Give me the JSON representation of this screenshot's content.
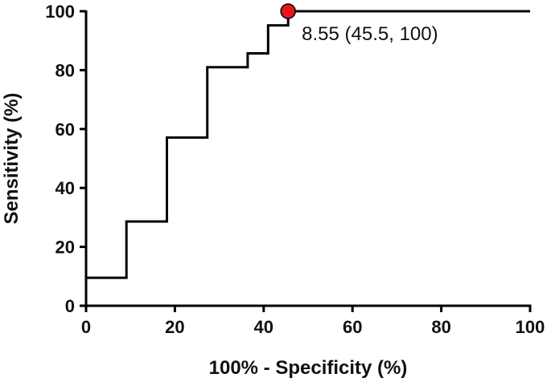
{
  "chart_data": {
    "type": "line",
    "title": "",
    "xlabel": "100% - Specificity (%)",
    "ylabel": "Sensitivity (%)",
    "xlim": [
      0,
      100
    ],
    "ylim": [
      0,
      100
    ],
    "xticks": [
      0,
      20,
      40,
      60,
      80,
      100
    ],
    "yticks": [
      0,
      20,
      40,
      60,
      80,
      100
    ],
    "grid": false,
    "series": [
      {
        "name": "",
        "step": true,
        "color": "#000000",
        "x": [
          0,
          9.1,
          9.1,
          18.2,
          18.2,
          27.3,
          27.3,
          36.4,
          36.4,
          41,
          41,
          45.5,
          45.5,
          100
        ],
        "y": [
          9.5,
          9.5,
          28.6,
          28.6,
          57.1,
          57.1,
          81,
          81,
          85.7,
          85.7,
          95.2,
          95.2,
          100,
          100
        ]
      }
    ],
    "highlight_point": {
      "x": 45.5,
      "y": 100,
      "color": "#e8141b"
    },
    "annotation": "8.55 (45.5, 100)"
  }
}
